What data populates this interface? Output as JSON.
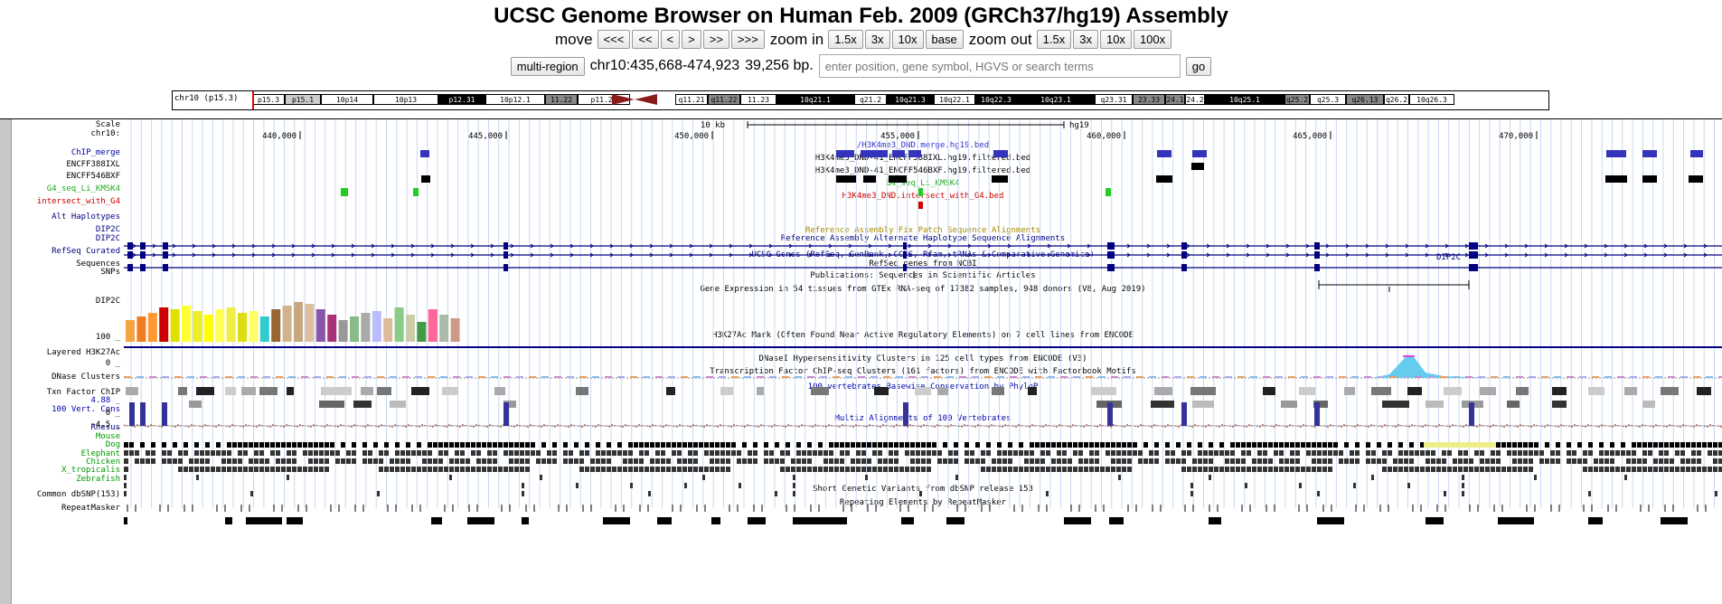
{
  "title": "UCSC Genome Browser on Human Feb. 2009 (GRCh37/hg19) Assembly",
  "nav": {
    "move_label": "move",
    "move_buttons": [
      "<<<",
      "<<",
      "<",
      ">",
      ">>",
      ">>>"
    ],
    "zoom_in_label": "zoom in",
    "zoom_in_buttons": [
      "1.5x",
      "3x",
      "10x",
      "base"
    ],
    "zoom_out_label": "zoom out",
    "zoom_out_buttons": [
      "1.5x",
      "3x",
      "10x",
      "100x"
    ]
  },
  "position": {
    "multi_region_label": "multi-region",
    "coords": "chr10:435,668-474,923",
    "size": "39,256 bp.",
    "search_placeholder": "enter position, gene symbol, HGVS or search terms",
    "go_label": "go"
  },
  "ideogram": {
    "chrom_label": "chr10 (p15.3)",
    "bands": [
      "p15.3",
      "p15.1",
      "10p14",
      "10p13",
      "p12.31",
      "10p12.1",
      "11.22",
      "p11.21",
      "q11.21",
      "q11.22",
      "11.23",
      "10q21.1",
      "q21.2",
      "10q21.3",
      "10q22.1",
      "10q22.3",
      "10q23.1",
      "q23.31",
      "23.33",
      "24.1",
      "24.2",
      "10q25.1",
      "q25.2",
      "q25.3",
      "q26.13",
      "q26.2",
      "10q26.3"
    ]
  },
  "ruler": {
    "scale_label": "Scale",
    "chrom_label": "chr10:",
    "scale_text": "10 kb",
    "assembly": "hg19",
    "ticks": [
      "440,000",
      "445,000",
      "450,000",
      "455,000",
      "460,000",
      "465,000",
      "470,000"
    ]
  },
  "tracks": [
    {
      "label": "ChIP_merge",
      "color": "#0000aa",
      "center": "/H3K4me3_DND.merge.hg19.bed",
      "center_color": "#3333cc"
    },
    {
      "label": "ENCFF388IXL",
      "color": "#000000",
      "center": "H3K4me3_DND-41_ENCFF388IXL.hg19.filtered.bed",
      "center_color": "#000000"
    },
    {
      "label": "ENCFF546BXF",
      "color": "#000000",
      "center": "H3K4me3_DND-41_ENCFF546BXF.hg19.filtered.bed",
      "center_color": "#000000"
    },
    {
      "label": "G4_seq_Li_KMSK4",
      "color": "#22aa22",
      "center": "G4_seq_Li_KMSK4",
      "center_color": "#22aa22"
    },
    {
      "label": "intersect_with_G4",
      "color": "#cc0000",
      "center": "H3K4me3_DND.intersect_with_G4.bed",
      "center_color": "#cc0000"
    },
    {
      "label": "",
      "color": "#000000",
      "center": "Reference Assembly Fix Patch Sequence Alignments",
      "center_color": "#aa8800"
    },
    {
      "label": "Alt Haplotypes",
      "color": "#000080",
      "center": "Reference Assembly Alternate Haplotype Sequence Alignments",
      "center_color": "#000080"
    },
    {
      "label": "DIP2C",
      "color": "#000080",
      "center": "UCSC Genes (RefSeq, GenBank, CCDS, Rfam, tRNAs & Comparative Genomics)",
      "center_color": "#000080"
    },
    {
      "label": "DIP2C",
      "color": "#000080",
      "center": "",
      "center_color": "#000080"
    },
    {
      "label": "RefSeq Curated",
      "color": "#000080",
      "center": "RefSeq genes from NCBI",
      "center_color": "#000000"
    },
    {
      "label": "Sequences",
      "color": "#000000",
      "center": "Publications: Sequences in Scientific Articles",
      "center_color": "#000000"
    },
    {
      "label": "SNPs",
      "color": "#000000",
      "center": "",
      "center_color": "#000000"
    },
    {
      "label": "",
      "color": "#000000",
      "center": "Gene Expression in 54 tissues from GTEx RNA-seq of 17382 samples, 948 donors (V8, Aug 2019)",
      "center_color": "#000000"
    },
    {
      "label": "DIP2C",
      "color": "#000000",
      "center": "",
      "center_color": "#000000"
    },
    {
      "label": "Layered H3K27Ac",
      "color": "#000000",
      "center": "H3K27Ac Mark (Often Found Near Active Regulatory Elements) on 7 cell lines from ENCODE",
      "center_color": "#000000"
    },
    {
      "label": "DNase Clusters",
      "color": "#000000",
      "center": "DNaseI Hypersensitivity Clusters in 125 cell types from ENCODE (V3)",
      "center_color": "#000000"
    },
    {
      "label": "Txn Factor ChIP",
      "color": "#000000",
      "center": "Transcription Factor ChIP-seq Clusters (161 factors) from ENCODE with Factorbook Motifs",
      "center_color": "#000000"
    },
    {
      "label": "100 Vert. Cons",
      "color": "#0000aa",
      "center": "100 vertebrates Basewise Conservation by PhyloP",
      "center_color": "#0000aa"
    },
    {
      "label": "",
      "color": "#000000",
      "center": "Multiz Alignments of 100 Vertebrates",
      "center_color": "#0000aa"
    },
    {
      "label": "Rhesus",
      "color": "#000080",
      "center": "",
      "center_color": "#000000"
    },
    {
      "label": "Mouse",
      "color": "#009900",
      "center": "",
      "center_color": "#000000"
    },
    {
      "label": "Dog",
      "color": "#009900",
      "center": "",
      "center_color": "#000000"
    },
    {
      "label": "Elephant",
      "color": "#009900",
      "center": "",
      "center_color": "#000000"
    },
    {
      "label": "Chicken",
      "color": "#009900",
      "center": "",
      "center_color": "#000000"
    },
    {
      "label": "X_tropicalis",
      "color": "#009900",
      "center": "",
      "center_color": "#000000"
    },
    {
      "label": "Zebrafish",
      "color": "#009900",
      "center": "",
      "center_color": "#000000"
    },
    {
      "label": "Common dbSNP(153)",
      "color": "#000000",
      "center": "Short Genetic Variants from dbSNP release 153",
      "center_color": "#000000"
    },
    {
      "label": "RepeatMasker",
      "color": "#000000",
      "center": "Repeating Elements by RepeatMasker",
      "center_color": "#000000"
    }
  ],
  "axis_labels": {
    "h3k27_max": "100 _",
    "h3k27_min": "0 _",
    "cons_max": "4.88 _",
    "cons_zero": "0 _",
    "cons_min": "-4.5 _"
  },
  "gene_label_right": "DIP2C"
}
